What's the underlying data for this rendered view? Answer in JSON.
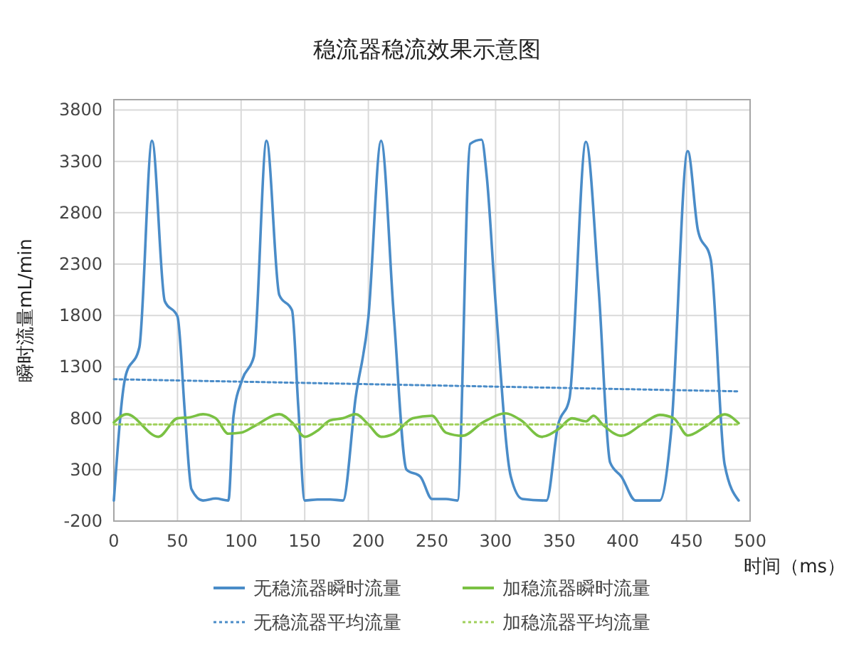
{
  "chart_data": {
    "type": "line",
    "title": "稳流器稳流效果示意图",
    "xlabel": "时间（ms）",
    "ylabel": "瞬时流量mL/min",
    "xlim": [
      0,
      500
    ],
    "xticks": [
      0,
      50,
      100,
      150,
      200,
      250,
      300,
      350,
      400,
      450,
      500
    ],
    "ylim": [
      -200,
      3900
    ],
    "yticks": [
      -200,
      300,
      800,
      1300,
      1800,
      2300,
      2800,
      3300,
      3800
    ],
    "grid": true,
    "legend": "bottom",
    "marker": "none",
    "series": [
      {
        "name": "无稳流器瞬时流量",
        "color": "#4a8cc8",
        "line_style": "solid",
        "x": [
          0,
          9,
          20,
          30,
          40,
          50,
          56,
          61,
          70,
          80,
          90,
          94,
          101,
          110,
          120,
          130,
          140,
          145,
          150,
          160,
          170,
          180,
          190,
          200,
          210,
          220,
          230,
          241,
          250,
          261,
          270,
          280,
          289,
          293,
          300,
          312,
          321,
          340,
          349,
          358,
          371,
          381,
          390,
          399,
          410,
          429,
          438,
          451,
          459,
          469,
          480,
          491
        ],
        "values": [
          0,
          1200,
          1490,
          3500,
          1940,
          1790,
          820,
          110,
          0,
          20,
          0,
          820,
          1180,
          1400,
          3500,
          2000,
          1850,
          900,
          0,
          10,
          10,
          0,
          1000,
          1780,
          3500,
          1800,
          300,
          230,
          15,
          15,
          0,
          3470,
          3510,
          3160,
          1920,
          230,
          15,
          0,
          730,
          990,
          3490,
          2060,
          370,
          230,
          0,
          0,
          680,
          3400,
          2630,
          2350,
          350,
          0
        ]
      },
      {
        "name": "加稳流器瞬时流量",
        "color": "#7ac143",
        "line_style": "solid",
        "x": [
          0,
          10,
          35,
          50,
          60,
          70,
          80,
          90,
          100,
          110,
          130,
          140,
          150,
          160,
          170,
          180,
          190,
          200,
          210,
          220,
          235,
          250,
          261,
          274,
          290,
          308,
          320,
          336,
          350,
          360,
          371,
          377,
          384,
          399,
          415,
          429,
          440,
          451,
          465,
          480,
          491
        ],
        "values": [
          760,
          840,
          620,
          800,
          810,
          840,
          800,
          650,
          660,
          720,
          840,
          760,
          620,
          680,
          780,
          800,
          840,
          740,
          620,
          650,
          800,
          825,
          660,
          630,
          760,
          848,
          780,
          620,
          700,
          800,
          770,
          825,
          740,
          630,
          740,
          833,
          800,
          633,
          720,
          838,
          752
        ]
      },
      {
        "name": "无稳流器平均流量",
        "color": "#4a8cc8",
        "line_style": "dotted",
        "x": [
          0,
          491
        ],
        "values": [
          1180,
          1062
        ]
      },
      {
        "name": "加稳流器平均流量",
        "color": "#9fd05a",
        "line_style": "dotted",
        "x": [
          0,
          491
        ],
        "values": [
          740,
          740
        ]
      }
    ]
  }
}
